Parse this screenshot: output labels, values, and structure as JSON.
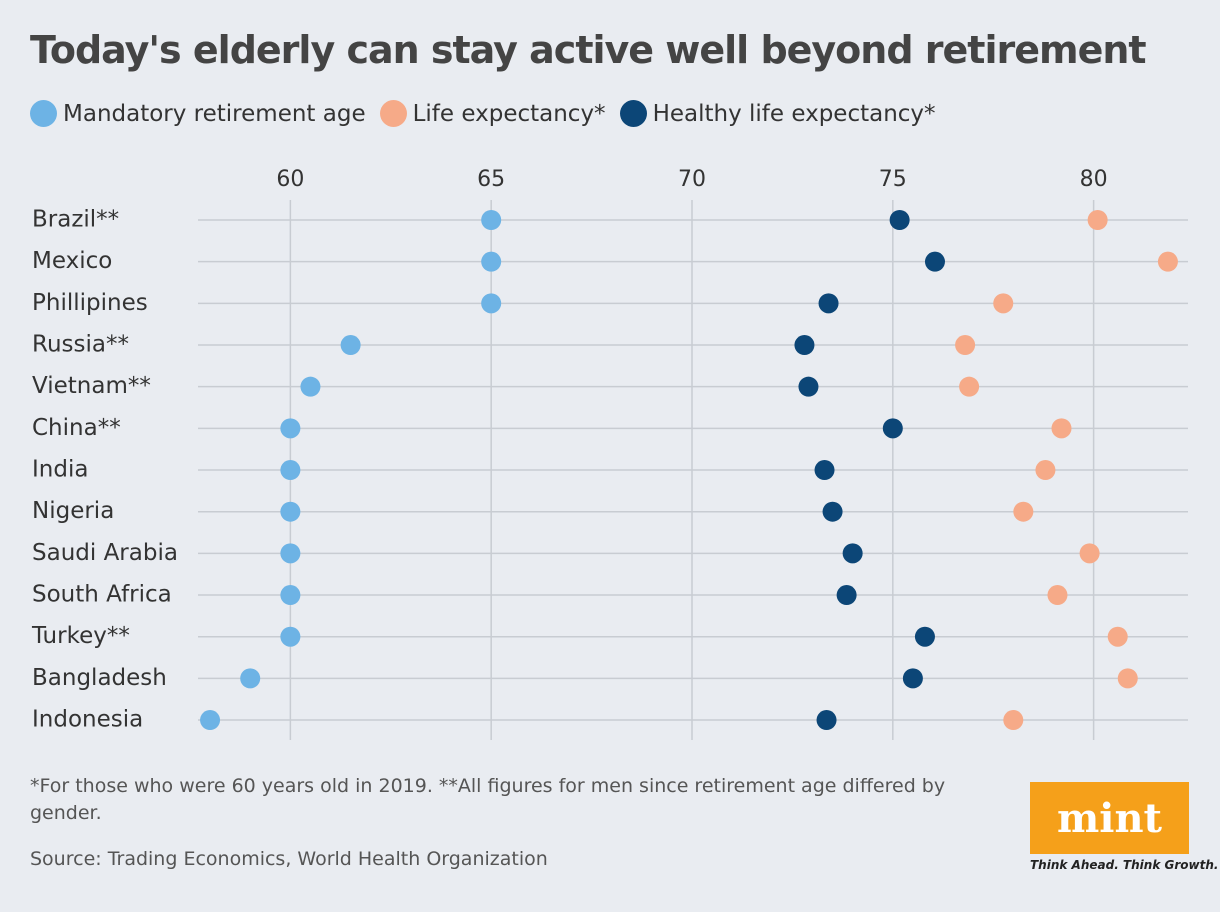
{
  "chart_data": {
    "type": "dot",
    "title": "Today's elderly can stay active well beyond retirement",
    "categories": [
      "Brazil**",
      "Mexico",
      "Phillipines",
      "Russia**",
      "Vietnam**",
      "China**",
      "India",
      "Nigeria",
      "Saudi Arabia",
      "South Africa",
      "Turkey**",
      "Bangladesh",
      "Indonesia"
    ],
    "series": [
      {
        "name": "Mandatory retirement age",
        "color": "#6db3e5",
        "values": [
          65,
          65,
          65,
          61.5,
          60.5,
          60,
          60,
          60,
          60,
          60,
          60,
          59,
          58
        ]
      },
      {
        "name": "Life expectancy*",
        "color": "#f6aa88",
        "values": [
          80.1,
          81.85,
          77.75,
          76.8,
          76.9,
          79.2,
          78.8,
          78.25,
          79.9,
          79.1,
          80.6,
          80.85,
          78.0
        ]
      },
      {
        "name": "Healthy life expectancy*",
        "color": "#0c4677",
        "values": [
          75.17,
          76.05,
          73.4,
          72.8,
          72.9,
          75.0,
          73.3,
          73.5,
          74.0,
          73.85,
          75.8,
          75.5,
          73.35
        ]
      }
    ],
    "xlim": [
      57.7,
      82.35
    ],
    "xticks": [
      60,
      65,
      70,
      75,
      80
    ],
    "grid": true,
    "footnote": "*For those who were 60 years old in 2019. **All figures for men since retirement age differed by gender.",
    "source": "Source: Trading Economics, World Health Organization"
  },
  "logo": {
    "name": "mint",
    "tagline": "Think Ahead. Think Growth."
  }
}
